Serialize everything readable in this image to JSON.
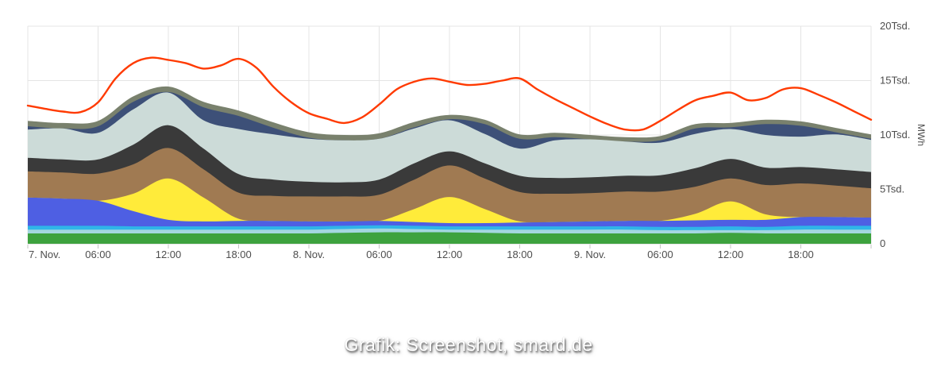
{
  "caption": "Grafik: Screenshot, smard.de",
  "axis": {
    "y_unit_label": "MWh",
    "y_ticks": [
      {
        "value": 0,
        "label": "0"
      },
      {
        "value": 5,
        "label": "5Tsd."
      },
      {
        "value": 10,
        "label": "10Tsd."
      },
      {
        "value": 15,
        "label": "15Tsd."
      },
      {
        "value": 20,
        "label": "20Tsd."
      }
    ],
    "x_ticks": [
      {
        "hour": 0,
        "label": "7. Nov."
      },
      {
        "hour": 6,
        "label": "06:00"
      },
      {
        "hour": 12,
        "label": "12:00"
      },
      {
        "hour": 18,
        "label": "18:00"
      },
      {
        "hour": 24,
        "label": "8. Nov."
      },
      {
        "hour": 30,
        "label": "06:00"
      },
      {
        "hour": 36,
        "label": "12:00"
      },
      {
        "hour": 42,
        "label": "18:00"
      },
      {
        "hour": 48,
        "label": "9. Nov."
      },
      {
        "hour": 54,
        "label": "06:00"
      },
      {
        "hour": 60,
        "label": "12:00"
      },
      {
        "hour": 66,
        "label": "18:00"
      }
    ],
    "x_gridline_hours": [
      0,
      6,
      12,
      18,
      24,
      30,
      36,
      42,
      48,
      54,
      60,
      66,
      72
    ]
  },
  "colors": {
    "grid": "#e4e4e4",
    "axis_line": "#cfcfcf",
    "tick_mark": "#c4c4c4",
    "axis_label": "#4d4d4d",
    "consumption_line": "#ff3a00"
  },
  "chart_data": {
    "type": "area",
    "stacked": true,
    "grid": true,
    "legend": "none visible",
    "x_range_hours": [
      0,
      72
    ],
    "x_description": "hours from 7. Nov. 00:00 to 10. Nov. 00:00, ticks every 6h",
    "ylim_tsd_mwh": [
      0,
      20
    ],
    "y_unit": "Tsd. MWh",
    "time_h": [
      0,
      3,
      6,
      9,
      12,
      15,
      18,
      21,
      24,
      27,
      30,
      33,
      36,
      39,
      42,
      45,
      48,
      51,
      54,
      57,
      60,
      63,
      66,
      69,
      72
    ],
    "series_note": "values are per-layer thickness in Tsd. MWh, listed bottom to top of the stack",
    "series": [
      {
        "name": "green-band",
        "color": "#3da23e",
        "values": [
          0.95,
          0.95,
          0.95,
          0.95,
          0.95,
          0.95,
          0.95,
          0.95,
          0.95,
          1.0,
          1.05,
          1.05,
          1.05,
          1.0,
          0.95,
          0.95,
          0.95,
          0.95,
          0.95,
          0.95,
          1.0,
          0.95,
          0.95,
          0.95,
          0.95
        ]
      },
      {
        "name": "pale-teal-band",
        "color": "#a4d7e0",
        "values": [
          0.35,
          0.35,
          0.35,
          0.35,
          0.35,
          0.35,
          0.35,
          0.35,
          0.35,
          0.35,
          0.35,
          0.3,
          0.25,
          0.3,
          0.35,
          0.35,
          0.35,
          0.35,
          0.3,
          0.3,
          0.25,
          0.3,
          0.35,
          0.35,
          0.35
        ]
      },
      {
        "name": "cyan-band",
        "color": "#2fb5e8",
        "values": [
          0.35,
          0.35,
          0.35,
          0.3,
          0.3,
          0.3,
          0.3,
          0.3,
          0.3,
          0.3,
          0.3,
          0.3,
          0.3,
          0.3,
          0.3,
          0.3,
          0.3,
          0.3,
          0.3,
          0.3,
          0.35,
          0.3,
          0.35,
          0.35,
          0.35
        ]
      },
      {
        "name": "royal-blue-band",
        "color": "#4e5fe3",
        "values": [
          2.6,
          2.5,
          2.3,
          1.4,
          0.6,
          0.45,
          0.5,
          0.5,
          0.45,
          0.4,
          0.4,
          0.35,
          0.3,
          0.3,
          0.35,
          0.4,
          0.45,
          0.5,
          0.55,
          0.6,
          0.6,
          0.65,
          0.8,
          0.8,
          0.75
        ]
      },
      {
        "name": "yellow-band",
        "color": "#ffeb3a",
        "values": [
          0,
          0,
          0,
          1.6,
          3.8,
          2.2,
          0.2,
          0,
          0,
          0,
          0,
          1.2,
          2.4,
          1.3,
          0.1,
          0,
          0,
          0,
          0,
          0.6,
          1.7,
          0.5,
          0,
          0,
          0
        ]
      },
      {
        "name": "brown-band",
        "color": "#a07a52",
        "values": [
          2.4,
          2.4,
          2.5,
          2.7,
          2.8,
          2.6,
          2.4,
          2.3,
          2.3,
          2.3,
          2.4,
          2.7,
          2.9,
          2.8,
          2.7,
          2.6,
          2.6,
          2.7,
          2.7,
          2.5,
          2.1,
          2.7,
          3.1,
          2.9,
          2.7
        ]
      },
      {
        "name": "dark-gray-band",
        "color": "#3a3a3a",
        "values": [
          1.25,
          1.2,
          1.3,
          1.8,
          2.1,
          1.9,
          1.7,
          1.5,
          1.35,
          1.3,
          1.4,
          1.5,
          1.3,
          1.4,
          1.5,
          1.45,
          1.45,
          1.45,
          1.5,
          1.7,
          1.8,
          1.6,
          1.5,
          1.5,
          1.5
        ]
      },
      {
        "name": "pale-gray-band",
        "color": "#ccdbd8",
        "values": [
          2.6,
          2.85,
          2.45,
          3.25,
          3.0,
          2.6,
          4.15,
          4.15,
          3.95,
          3.85,
          3.75,
          3.2,
          2.85,
          2.7,
          2.5,
          3.45,
          3.5,
          3.15,
          3.0,
          3.15,
          2.75,
          3.0,
          2.8,
          3.2,
          2.95
        ]
      },
      {
        "name": "navy-band",
        "color": "#3d5078",
        "values": [
          0.3,
          0,
          0.6,
          0.7,
          0.05,
          1.2,
          1.2,
          0.6,
          0.1,
          0,
          0,
          0.1,
          0.1,
          0.9,
          0.9,
          0.3,
          0,
          0,
          0.2,
          0.5,
          0.15,
          1.0,
          1.0,
          0.2,
          0.1
        ]
      },
      {
        "name": "olive-top-band",
        "color": "#79816d",
        "values": [
          0.5,
          0.5,
          0.5,
          0.5,
          0.5,
          0.5,
          0.5,
          0.5,
          0.5,
          0.5,
          0.5,
          0.5,
          0.4,
          0.4,
          0.4,
          0.4,
          0.4,
          0.4,
          0.4,
          0.4,
          0.4,
          0.4,
          0.4,
          0.4,
          0.4
        ]
      }
    ],
    "line_series": {
      "name": "red-consumption-line",
      "color": "#ff3a00",
      "time_h": [
        0,
        1.5,
        3,
        4.5,
        6,
        7.5,
        9,
        10.5,
        12,
        13.5,
        15,
        16.5,
        18,
        19.5,
        21,
        22.5,
        24,
        25.5,
        27,
        28.5,
        30,
        31.5,
        33,
        34.5,
        36,
        37.5,
        39,
        40.5,
        42,
        43.5,
        45,
        46.5,
        48,
        49.5,
        51,
        52.5,
        54,
        55.5,
        57,
        58.5,
        60,
        61.5,
        63,
        64.5,
        66,
        67.5,
        69,
        70.5,
        72
      ],
      "values": [
        12.7,
        12.4,
        12.15,
        12.1,
        13.0,
        15.2,
        16.6,
        17.1,
        16.9,
        16.6,
        16.1,
        16.4,
        17.0,
        16.2,
        14.4,
        13.0,
        12.0,
        11.5,
        11.1,
        11.6,
        12.8,
        14.2,
        14.9,
        15.2,
        14.9,
        14.6,
        14.7,
        15.0,
        15.2,
        14.2,
        13.3,
        12.5,
        11.7,
        11.0,
        10.5,
        10.5,
        11.3,
        12.3,
        13.2,
        13.6,
        13.9,
        13.2,
        13.4,
        14.2,
        14.3,
        13.7,
        13.0,
        12.2,
        11.4
      ]
    }
  }
}
